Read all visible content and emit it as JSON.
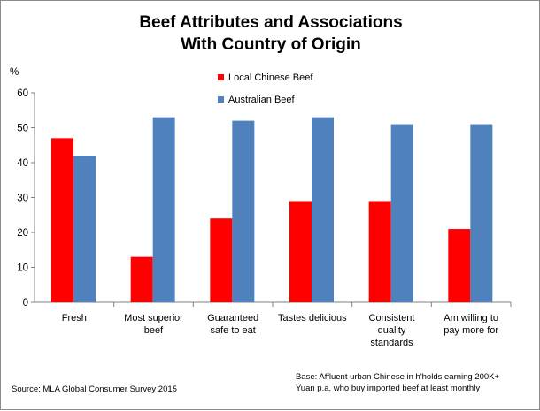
{
  "chart_data": {
    "type": "bar",
    "title_lines": [
      "Beef Attributes and Associations",
      "With Country of Origin"
    ],
    "ylabel": "%",
    "ylim": [
      0,
      60
    ],
    "yticks": [
      "0",
      "10",
      "20",
      "30",
      "40",
      "50",
      "60"
    ],
    "grid": false,
    "legend_position": "top-center",
    "categories": [
      [
        "Fresh"
      ],
      [
        "Most superior",
        "beef"
      ],
      [
        "Guaranteed",
        "safe to eat"
      ],
      [
        "Tastes delicious"
      ],
      [
        "Consistent",
        "quality",
        "standards"
      ],
      [
        "Am willing to",
        "pay more for"
      ]
    ],
    "series": [
      {
        "name": "Local Chinese Beef",
        "color": "#ff0000",
        "values": [
          47,
          13,
          24,
          29,
          29,
          21
        ]
      },
      {
        "name": "Australian Beef",
        "color": "#4f81bd",
        "values": [
          42,
          53,
          52,
          53,
          51,
          51
        ]
      }
    ],
    "source": "Source: MLA Global Consumer Survey 2015",
    "base_note": [
      "Base: Affluent urban Chinese in h'holds earning 200K+",
      "Yuan p.a. who buy imported beef at least monthly"
    ]
  }
}
